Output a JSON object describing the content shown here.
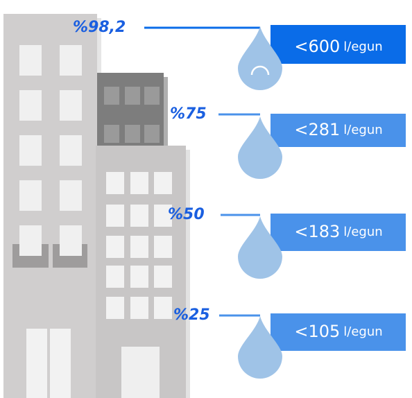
{
  "items": [
    {
      "percent": "%98,2",
      "amount": "<600",
      "unit": "l/egun"
    },
    {
      "percent": "%75",
      "amount": "<281",
      "unit": "l/egun"
    },
    {
      "percent": "%50",
      "amount": "<183",
      "unit": "l/egun"
    },
    {
      "percent": "%25",
      "amount": "<105",
      "unit": "l/egun"
    }
  ]
}
